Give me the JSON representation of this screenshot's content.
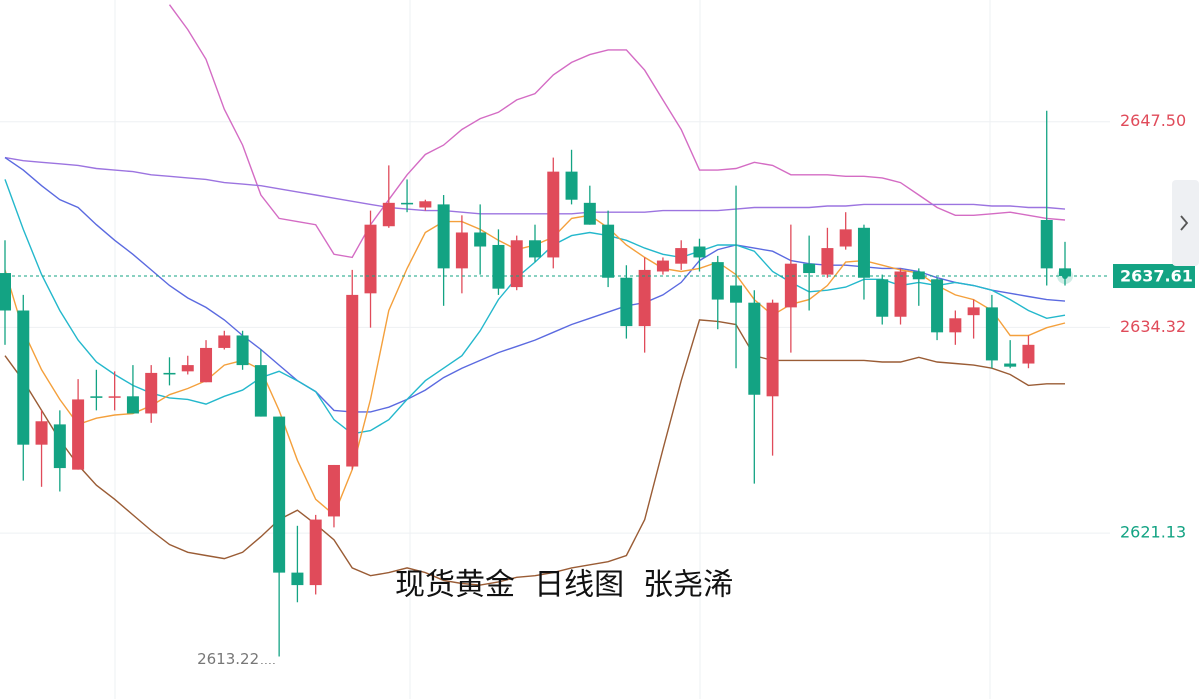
{
  "chart_data": {
    "type": "candlestick",
    "annotations": [
      "现货黄金  日线图  张尧浠"
    ],
    "categories": [
      null,
      null,
      null,
      null,
      null,
      null,
      null,
      null,
      null,
      null,
      null,
      null,
      null,
      null,
      null,
      null,
      null,
      null,
      null,
      null,
      null,
      null,
      null,
      null,
      null,
      null,
      null,
      null,
      null,
      null,
      null,
      null,
      null,
      null,
      null,
      null,
      null,
      null,
      null,
      null,
      null,
      null,
      null,
      null,
      null,
      null,
      null,
      null,
      null,
      null,
      null,
      null,
      null,
      null,
      null,
      null,
      null,
      null,
      null
    ],
    "open": [
      2637.8,
      2635.4,
      2626.8,
      2628.1,
      2625.2,
      2629.9,
      2629.9,
      2629.9,
      2628.8,
      2631.4,
      2631.5,
      2630.8,
      2633.0,
      2633.8,
      2631.9,
      2628.6,
      2618.6,
      2617.8,
      2622.2,
      2625.4,
      2636.5,
      2640.8,
      2642.3,
      2642.0,
      2642.2,
      2638.1,
      2640.4,
      2639.6,
      2636.9,
      2639.9,
      2638.8,
      2644.3,
      2642.3,
      2640.9,
      2637.5,
      2634.4,
      2637.9,
      2638.4,
      2639.5,
      2638.5,
      2637.0,
      2635.9,
      2629.9,
      2635.6,
      2638.4,
      2637.7,
      2639.5,
      2640.7,
      2637.4,
      2635.0,
      2637.9,
      2637.4,
      2634.0,
      2635.1,
      2635.6,
      2632.0,
      2632.0,
      2641.2,
      2638.1
    ],
    "high": [
      2639.9,
      2636.4,
      2629.0,
      2629.0,
      2631.0,
      2631.6,
      2631.5,
      2631.9,
      2631.9,
      2632.4,
      2632.5,
      2633.5,
      2634.1,
      2634.1,
      2632.9,
      2628.6,
      2621.6,
      2622.3,
      2625.5,
      2638.0,
      2641.8,
      2644.7,
      2643.8,
      2642.5,
      2642.8,
      2641.5,
      2642.2,
      2640.6,
      2640.2,
      2640.9,
      2645.2,
      2645.7,
      2643.4,
      2641.8,
      2638.3,
      2638.8,
      2638.8,
      2639.9,
      2640.0,
      2638.9,
      2643.4,
      2636.7,
      2636.1,
      2640.9,
      2640.2,
      2640.7,
      2641.7,
      2640.9,
      2637.7,
      2638.1,
      2638.1,
      2637.5,
      2635.4,
      2636.1,
      2636.4,
      2633.5,
      2633.8,
      2648.2,
      2639.8
    ],
    "low": [
      2633.2,
      2624.5,
      2624.1,
      2623.8,
      2625.2,
      2629.0,
      2629.0,
      2628.8,
      2628.2,
      2630.6,
      2631.3,
      2630.8,
      2632.9,
      2631.6,
      2628.6,
      2613.22,
      2616.7,
      2617.2,
      2621.5,
      2625.2,
      2634.3,
      2640.7,
      2641.7,
      2641.8,
      2635.7,
      2636.5,
      2637.7,
      2636.4,
      2636.7,
      2638.5,
      2638.1,
      2642.2,
      2640.9,
      2636.9,
      2633.6,
      2632.7,
      2637.7,
      2638.0,
      2637.9,
      2634.2,
      2631.7,
      2624.3,
      2626.1,
      2632.7,
      2635.4,
      2637.5,
      2639.3,
      2636.1,
      2634.5,
      2634.5,
      2635.7,
      2633.5,
      2633.2,
      2633.6,
      2631.7,
      2631.7,
      2631.7,
      2637.0,
      2637.0
    ],
    "close": [
      2635.4,
      2626.8,
      2628.3,
      2625.3,
      2629.7,
      2629.8,
      2629.9,
      2628.8,
      2631.4,
      2631.3,
      2631.9,
      2633.0,
      2633.8,
      2631.9,
      2628.6,
      2618.6,
      2617.8,
      2622.0,
      2625.5,
      2636.4,
      2640.9,
      2642.3,
      2642.2,
      2642.4,
      2638.1,
      2640.4,
      2639.5,
      2636.8,
      2639.9,
      2638.8,
      2644.3,
      2642.5,
      2640.9,
      2637.5,
      2634.4,
      2638.0,
      2638.6,
      2639.4,
      2638.8,
      2636.1,
      2635.9,
      2630.0,
      2635.9,
      2638.4,
      2637.8,
      2639.4,
      2640.6,
      2637.5,
      2635.0,
      2637.9,
      2637.4,
      2634.0,
      2634.9,
      2635.6,
      2632.2,
      2631.8,
      2633.2,
      2638.1,
      2637.61
    ],
    "up_color": "#e04b5a",
    "down_color": "#13a383",
    "lines": [
      {
        "color": "#d46cc4",
        "values": [
          null,
          null,
          null,
          null,
          null,
          null,
          null,
          null,
          null,
          2655.0,
          2653.4,
          2651.5,
          2648.3,
          2646.0,
          2642.8,
          2641.3,
          2641.1,
          2640.9,
          2639.0,
          2638.8,
          2640.9,
          2642.5,
          2644.1,
          2645.4,
          2646.0,
          2647.0,
          2647.7,
          2648.1,
          2648.9,
          2649.3,
          2650.5,
          2651.3,
          2651.8,
          2652.1,
          2652.1,
          2650.8,
          2648.9,
          2647.0,
          2644.4,
          2644.4,
          2644.5,
          2644.9,
          2644.7,
          2644.1,
          2644.1,
          2644.1,
          2644.0,
          2644.0,
          2643.9,
          2643.6,
          2642.8,
          2642.0,
          2641.5,
          2641.5,
          2641.6,
          2641.7,
          2641.5,
          2641.3,
          2641.2
        ]
      },
      {
        "color": "#9a5c35",
        "values": [
          2632.5,
          2630.9,
          2629.0,
          2627.1,
          2625.5,
          2624.2,
          2623.3,
          2622.3,
          2621.3,
          2620.4,
          2619.9,
          2619.7,
          2619.5,
          2619.9,
          2620.9,
          2622.0,
          2622.6,
          2621.7,
          2620.7,
          2618.9,
          2618.4,
          2618.6,
          2618.9,
          2618.6,
          2618.1,
          2617.9,
          2617.8,
          2618.0,
          2618.3,
          2618.4,
          2618.6,
          2618.9,
          2619.1,
          2619.3,
          2619.7,
          2622.0,
          2626.5,
          2630.9,
          2634.8,
          2634.7,
          2634.5,
          2632.5,
          2632.2,
          2632.2,
          2632.2,
          2632.2,
          2632.2,
          2632.2,
          2632.1,
          2632.1,
          2632.4,
          2632.1,
          2632.0,
          2631.9,
          2631.7,
          2631.3,
          2630.6,
          2630.7,
          2630.7
        ]
      },
      {
        "color": "#9c74e0",
        "values": [
          2645.2,
          2645.0,
          2644.9,
          2644.8,
          2644.7,
          2644.5,
          2644.4,
          2644.3,
          2644.1,
          2644.0,
          2643.9,
          2643.8,
          2643.6,
          2643.5,
          2643.4,
          2643.2,
          2643.0,
          2642.8,
          2642.6,
          2642.4,
          2642.2,
          2642.0,
          2641.9,
          2641.8,
          2641.8,
          2641.7,
          2641.6,
          2641.6,
          2641.6,
          2641.6,
          2641.6,
          2641.6,
          2641.7,
          2641.7,
          2641.7,
          2641.7,
          2641.8,
          2641.8,
          2641.8,
          2641.8,
          2641.9,
          2642.0,
          2642.0,
          2642.0,
          2642.0,
          2642.1,
          2642.1,
          2642.2,
          2642.2,
          2642.2,
          2642.2,
          2642.2,
          2642.2,
          2642.2,
          2642.1,
          2642.1,
          2642.0,
          2642.0,
          2641.9
        ]
      },
      {
        "color": "#5b6ae0",
        "values": [
          2645.2,
          2644.4,
          2643.4,
          2642.5,
          2642.0,
          2640.9,
          2639.9,
          2639.0,
          2638.0,
          2637.0,
          2636.2,
          2635.6,
          2634.8,
          2633.8,
          2632.9,
          2631.9,
          2630.9,
          2630.2,
          2629.0,
          2628.9,
          2628.9,
          2629.2,
          2629.7,
          2630.3,
          2631.1,
          2631.7,
          2632.2,
          2632.7,
          2633.1,
          2633.5,
          2634.0,
          2634.5,
          2634.9,
          2635.3,
          2635.7,
          2635.9,
          2636.4,
          2637.2,
          2638.6,
          2639.3,
          2639.6,
          2639.4,
          2639.2,
          2638.6,
          2638.4,
          2638.3,
          2638.3,
          2638.2,
          2638.1,
          2638.1,
          2637.9,
          2637.5,
          2637.2,
          2637.0,
          2636.7,
          2636.5,
          2636.3,
          2636.1,
          2636.0
        ]
      },
      {
        "color": "#24b8cc",
        "values": [
          2643.8,
          2640.6,
          2637.7,
          2635.4,
          2633.5,
          2632.1,
          2631.3,
          2630.6,
          2630.1,
          2629.8,
          2629.7,
          2629.4,
          2629.9,
          2630.3,
          2631.1,
          2631.5,
          2630.9,
          2630.2,
          2628.4,
          2627.5,
          2627.7,
          2628.4,
          2629.7,
          2630.9,
          2631.7,
          2632.5,
          2634.1,
          2636.1,
          2637.5,
          2638.5,
          2639.6,
          2640.2,
          2640.4,
          2640.2,
          2639.9,
          2639.4,
          2639.0,
          2638.8,
          2639.2,
          2639.6,
          2639.6,
          2639.2,
          2637.9,
          2637.2,
          2636.6,
          2636.7,
          2636.9,
          2637.4,
          2637.4,
          2637.0,
          2637.2,
          2637.0,
          2637.2,
          2637.0,
          2636.7,
          2636.1,
          2635.4,
          2634.9,
          2635.1
        ]
      },
      {
        "color": "#f4a03c",
        "values": [
          2638.0,
          2634.1,
          2631.6,
          2629.7,
          2628.1,
          2628.5,
          2628.7,
          2628.8,
          2629.3,
          2630.0,
          2630.4,
          2630.9,
          2631.9,
          2632.2,
          2631.6,
          2629.0,
          2625.8,
          2623.3,
          2622.3,
          2625.2,
          2629.7,
          2635.4,
          2638.1,
          2640.4,
          2641.1,
          2641.1,
          2640.6,
          2639.9,
          2639.3,
          2639.6,
          2640.1,
          2641.3,
          2641.5,
          2640.7,
          2639.6,
          2638.8,
          2638.1,
          2637.9,
          2638.1,
          2638.5,
          2637.7,
          2636.1,
          2635.1,
          2635.8,
          2636.1,
          2637.0,
          2638.5,
          2638.6,
          2638.3,
          2638.0,
          2637.8,
          2637.0,
          2636.4,
          2636.1,
          2635.4,
          2633.8,
          2633.8,
          2634.3,
          2634.6
        ]
      }
    ],
    "ylim": [
      2610.5,
      2655.3
    ],
    "yticks": [
      2621.13,
      2634.32,
      {
        "value": 2647.5,
        "label": "2647.50"
      }
    ],
    "grid": true
  }
}
